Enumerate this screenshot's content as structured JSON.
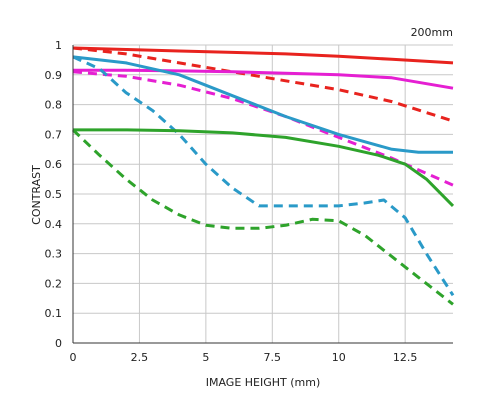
{
  "chart_data": {
    "type": "line",
    "title": "200mm",
    "xlabel": "IMAGE HEIGHT (mm)",
    "ylabel": "CONTRAST",
    "xlim": [
      0,
      14.3
    ],
    "ylim": [
      0,
      1
    ],
    "xticks": [
      "0",
      "2.5",
      "5",
      "7.5",
      "10",
      "12.5"
    ],
    "xtick_values": [
      0,
      2.5,
      5,
      7.5,
      10,
      12.5
    ],
    "yticks": [
      "0",
      "0.1",
      "0.2",
      "0.3",
      "0.4",
      "0.5",
      "0.6",
      "0.7",
      "0.8",
      "0.9",
      "1"
    ],
    "ytick_values": [
      0,
      0.1,
      0.2,
      0.3,
      0.4,
      0.5,
      0.6,
      0.7,
      0.8,
      0.9,
      1
    ],
    "grid": true,
    "series": [
      {
        "color": "#e8231e",
        "style": "solid",
        "x": [
          0,
          2,
          4,
          6,
          8,
          10,
          12,
          14.3
        ],
        "y": [
          0.99,
          0.985,
          0.98,
          0.975,
          0.97,
          0.962,
          0.952,
          0.94
        ]
      },
      {
        "color": "#e8231e",
        "style": "dashed",
        "x": [
          0,
          2,
          4,
          6,
          8,
          10,
          12,
          14.3
        ],
        "y": [
          0.99,
          0.97,
          0.94,
          0.91,
          0.88,
          0.85,
          0.81,
          0.745
        ]
      },
      {
        "color": "#e51fd2",
        "style": "solid",
        "x": [
          0,
          2,
          4,
          6,
          8,
          10,
          12,
          14.3
        ],
        "y": [
          0.915,
          0.915,
          0.913,
          0.91,
          0.905,
          0.9,
          0.89,
          0.855
        ]
      },
      {
        "color": "#e51fd2",
        "style": "dashed",
        "x": [
          0,
          2,
          4,
          6,
          8,
          10,
          12,
          14.3
        ],
        "y": [
          0.91,
          0.895,
          0.865,
          0.82,
          0.76,
          0.69,
          0.62,
          0.53
        ]
      },
      {
        "color": "#2a9ac8",
        "style": "solid",
        "x": [
          0,
          2,
          4,
          6,
          8,
          10,
          12,
          13,
          14.3
        ],
        "y": [
          0.96,
          0.94,
          0.9,
          0.83,
          0.76,
          0.7,
          0.65,
          0.64,
          0.64
        ]
      },
      {
        "color": "#2a9ac8",
        "style": "dashed",
        "x": [
          0,
          1,
          2,
          3,
          4,
          5,
          6,
          7,
          8,
          9,
          10,
          11,
          11.7,
          12.5,
          13.3,
          14.3
        ],
        "y": [
          0.96,
          0.92,
          0.84,
          0.78,
          0.7,
          0.6,
          0.52,
          0.46,
          0.46,
          0.46,
          0.46,
          0.47,
          0.48,
          0.42,
          0.3,
          0.16
        ]
      },
      {
        "color": "#2ea32b",
        "style": "solid",
        "x": [
          0,
          2,
          4,
          6,
          8,
          10,
          11.5,
          12.5,
          13.3,
          14.3
        ],
        "y": [
          0.715,
          0.715,
          0.712,
          0.705,
          0.69,
          0.66,
          0.63,
          0.6,
          0.55,
          0.46
        ]
      },
      {
        "color": "#2ea32b",
        "style": "dashed",
        "x": [
          0,
          1,
          2,
          3,
          4,
          5,
          6,
          7,
          8,
          9,
          10,
          11,
          12,
          13,
          14.3
        ],
        "y": [
          0.715,
          0.63,
          0.55,
          0.48,
          0.43,
          0.395,
          0.385,
          0.385,
          0.395,
          0.415,
          0.41,
          0.36,
          0.29,
          0.22,
          0.13
        ]
      }
    ]
  }
}
